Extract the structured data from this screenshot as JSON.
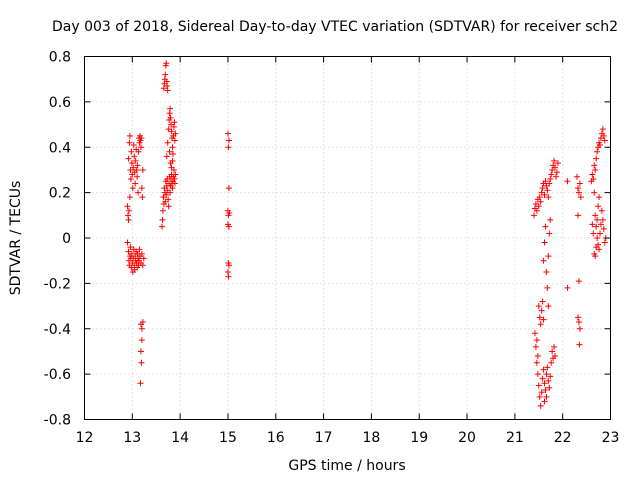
{
  "chart_data": {
    "type": "scatter",
    "title": "Day 003 of 2018, Sidereal Day-to-day VTEC variation (SDTVAR) for receiver sch2",
    "xlabel": "GPS time / hours",
    "ylabel": "SDTVAR / TECUs",
    "xlim": [
      12,
      23
    ],
    "ylim": [
      -0.8,
      0.8
    ],
    "xticks": [
      12,
      13,
      14,
      15,
      16,
      17,
      18,
      19,
      20,
      21,
      22,
      23
    ],
    "yticks": [
      -0.8,
      -0.6,
      -0.4,
      -0.2,
      0,
      0.2,
      0.4,
      0.6,
      0.8
    ],
    "ytick_labels": [
      "-0.8",
      "-0.6",
      "-0.4",
      "-0.2",
      "0",
      "0.2",
      "0.4",
      "0.6",
      "0.8"
    ],
    "grid": true,
    "marker": "plus",
    "color": "#ff0000",
    "series": [
      {
        "name": "SDTVAR",
        "points": [
          [
            12.92,
            0.35
          ],
          [
            12.94,
            0.42
          ],
          [
            12.95,
            0.45
          ],
          [
            12.96,
            0.3
          ],
          [
            12.97,
            0.26
          ],
          [
            12.98,
            0.38
          ],
          [
            12.99,
            0.33
          ],
          [
            13.0,
            0.28
          ],
          [
            13.01,
            0.22
          ],
          [
            13.02,
            0.31
          ],
          [
            13.03,
            0.41
          ],
          [
            13.04,
            0.36
          ],
          [
            13.05,
            0.29
          ],
          [
            13.06,
            0.24
          ],
          [
            13.07,
            0.34
          ],
          [
            13.08,
            0.39
          ],
          [
            13.09,
            0.3
          ],
          [
            13.1,
            0.27
          ],
          [
            13.11,
            0.32
          ],
          [
            13.12,
            0.2
          ],
          [
            13.13,
            0.38
          ],
          [
            13.14,
            0.44
          ],
          [
            13.15,
            0.42
          ],
          [
            13.16,
            0.45
          ],
          [
            13.17,
            0.43
          ],
          [
            13.18,
            0.4
          ],
          [
            13.19,
            0.44
          ],
          [
            13.2,
            0.22
          ],
          [
            13.21,
            0.18
          ],
          [
            13.22,
            0.3
          ],
          [
            12.9,
            0.14
          ],
          [
            12.91,
            0.1
          ],
          [
            12.92,
            0.08
          ],
          [
            12.93,
            0.12
          ],
          [
            12.95,
            0.18
          ],
          [
            12.9,
            -0.02
          ],
          [
            12.92,
            -0.06
          ],
          [
            12.93,
            -0.1
          ],
          [
            12.94,
            -0.12
          ],
          [
            12.95,
            -0.08
          ],
          [
            12.96,
            -0.04
          ],
          [
            12.97,
            -0.09
          ],
          [
            12.98,
            -0.13
          ],
          [
            12.99,
            -0.07
          ],
          [
            13.0,
            -0.11
          ],
          [
            13.01,
            -0.15
          ],
          [
            13.02,
            -0.09
          ],
          [
            13.03,
            -0.05
          ],
          [
            13.04,
            -0.12
          ],
          [
            13.05,
            -0.14
          ],
          [
            13.06,
            -0.08
          ],
          [
            13.07,
            -0.1
          ],
          [
            13.08,
            -0.06
          ],
          [
            13.09,
            -0.11
          ],
          [
            13.1,
            -0.13
          ],
          [
            13.11,
            -0.07
          ],
          [
            13.12,
            -0.09
          ],
          [
            13.13,
            -0.12
          ],
          [
            13.14,
            -0.1
          ],
          [
            13.15,
            -0.05
          ],
          [
            13.16,
            -0.08
          ],
          [
            13.18,
            -0.11
          ],
          [
            13.2,
            -0.07
          ],
          [
            13.22,
            -0.12
          ],
          [
            13.24,
            -0.09
          ],
          [
            13.18,
            -0.38
          ],
          [
            13.2,
            -0.4
          ],
          [
            13.22,
            -0.37
          ],
          [
            13.2,
            -0.45
          ],
          [
            13.18,
            -0.5
          ],
          [
            13.19,
            -0.55
          ],
          [
            13.17,
            -0.64
          ],
          [
            13.62,
            0.05
          ],
          [
            13.63,
            0.08
          ],
          [
            13.64,
            0.12
          ],
          [
            13.65,
            0.18
          ],
          [
            13.66,
            0.15
          ],
          [
            13.67,
            0.22
          ],
          [
            13.68,
            0.2
          ],
          [
            13.69,
            0.16
          ],
          [
            13.7,
            0.25
          ],
          [
            13.71,
            0.19
          ],
          [
            13.72,
            0.23
          ],
          [
            13.73,
            0.26
          ],
          [
            13.74,
            0.21
          ],
          [
            13.75,
            0.17
          ],
          [
            13.76,
            0.14
          ],
          [
            13.77,
            0.24
          ],
          [
            13.78,
            0.27
          ],
          [
            13.79,
            0.2
          ],
          [
            13.8,
            0.23
          ],
          [
            13.81,
            0.26
          ],
          [
            13.82,
            0.28
          ],
          [
            13.83,
            0.24
          ],
          [
            13.84,
            0.22
          ],
          [
            13.85,
            0.25
          ],
          [
            13.86,
            0.27
          ],
          [
            13.87,
            0.3
          ],
          [
            13.88,
            0.26
          ],
          [
            13.89,
            0.24
          ],
          [
            13.9,
            0.28
          ],
          [
            13.66,
            0.66
          ],
          [
            13.67,
            0.68
          ],
          [
            13.68,
            0.7
          ],
          [
            13.69,
            0.72
          ],
          [
            13.7,
            0.76
          ],
          [
            13.71,
            0.77
          ],
          [
            13.72,
            0.69
          ],
          [
            13.73,
            0.67
          ],
          [
            13.74,
            0.65
          ],
          [
            13.72,
            0.36
          ],
          [
            13.74,
            0.42
          ],
          [
            13.76,
            0.48
          ],
          [
            13.77,
            0.52
          ],
          [
            13.78,
            0.55
          ],
          [
            13.79,
            0.57
          ],
          [
            13.8,
            0.53
          ],
          [
            13.81,
            0.5
          ],
          [
            13.82,
            0.47
          ],
          [
            13.83,
            0.44
          ],
          [
            13.84,
            0.4
          ],
          [
            13.85,
            0.37
          ],
          [
            13.86,
            0.45
          ],
          [
            13.87,
            0.49
          ],
          [
            13.88,
            0.51
          ],
          [
            13.89,
            0.43
          ],
          [
            13.9,
            0.46
          ],
          [
            13.78,
            0.38
          ],
          [
            13.8,
            0.33
          ],
          [
            13.82,
            0.31
          ],
          [
            13.84,
            0.34
          ],
          [
            15.0,
            0.46
          ],
          [
            15.02,
            0.43
          ],
          [
            15.01,
            0.4
          ],
          [
            15.02,
            0.22
          ],
          [
            15.0,
            0.12
          ],
          [
            15.01,
            0.1
          ],
          [
            15.03,
            0.11
          ],
          [
            15.02,
            0.05
          ],
          [
            15.0,
            0.06
          ],
          [
            15.01,
            -0.11
          ],
          [
            15.02,
            -0.12
          ],
          [
            15.0,
            -0.15
          ],
          [
            15.01,
            -0.17
          ],
          [
            21.4,
            0.1
          ],
          [
            21.42,
            0.13
          ],
          [
            21.44,
            0.15
          ],
          [
            21.46,
            0.12
          ],
          [
            21.48,
            0.17
          ],
          [
            21.5,
            0.14
          ],
          [
            21.52,
            0.18
          ],
          [
            21.54,
            0.16
          ],
          [
            21.56,
            0.2
          ],
          [
            21.58,
            0.22
          ],
          [
            21.6,
            0.24
          ],
          [
            21.62,
            0.19
          ],
          [
            21.64,
            0.25
          ],
          [
            21.66,
            0.23
          ],
          [
            21.68,
            0.21
          ],
          [
            21.7,
            0.18
          ],
          [
            21.72,
            0.24
          ],
          [
            21.74,
            0.26
          ],
          [
            21.76,
            0.28
          ],
          [
            21.78,
            0.3
          ],
          [
            21.8,
            0.32
          ],
          [
            21.82,
            0.34
          ],
          [
            21.84,
            0.31
          ],
          [
            21.86,
            0.27
          ],
          [
            21.88,
            0.29
          ],
          [
            21.9,
            0.33
          ],
          [
            21.42,
            -0.42
          ],
          [
            21.44,
            -0.48
          ],
          [
            21.46,
            -0.55
          ],
          [
            21.48,
            -0.6
          ],
          [
            21.5,
            -0.65
          ],
          [
            21.52,
            -0.7
          ],
          [
            21.54,
            -0.74
          ],
          [
            21.56,
            -0.68
          ],
          [
            21.58,
            -0.62
          ],
          [
            21.6,
            -0.58
          ],
          [
            21.62,
            -0.64
          ],
          [
            21.64,
            -0.67
          ],
          [
            21.66,
            -0.6
          ],
          [
            21.68,
            -0.57
          ],
          [
            21.7,
            -0.63
          ],
          [
            21.72,
            -0.66
          ],
          [
            21.74,
            -0.61
          ],
          [
            21.76,
            -0.55
          ],
          [
            21.78,
            -0.5
          ],
          [
            21.8,
            -0.53
          ],
          [
            21.82,
            -0.48
          ],
          [
            21.84,
            -0.52
          ],
          [
            21.5,
            -0.3
          ],
          [
            21.52,
            -0.35
          ],
          [
            21.54,
            -0.38
          ],
          [
            21.56,
            -0.32
          ],
          [
            21.58,
            -0.28
          ],
          [
            21.6,
            -0.36
          ],
          [
            21.46,
            -0.45
          ],
          [
            21.48,
            -0.52
          ],
          [
            21.62,
            -0.72
          ],
          [
            21.66,
            -0.7
          ],
          [
            21.6,
            -0.1
          ],
          [
            21.62,
            -0.02
          ],
          [
            21.64,
            0.05
          ],
          [
            21.66,
            -0.15
          ],
          [
            21.68,
            -0.22
          ],
          [
            21.7,
            -0.08
          ],
          [
            21.72,
            0.02
          ],
          [
            21.74,
            0.08
          ],
          [
            21.7,
            -0.3
          ],
          [
            22.1,
            0.25
          ],
          [
            22.1,
            -0.22
          ],
          [
            22.3,
            0.27
          ],
          [
            22.32,
            0.22
          ],
          [
            22.34,
            0.2
          ],
          [
            22.36,
            0.24
          ],
          [
            22.38,
            0.18
          ],
          [
            22.32,
            0.1
          ],
          [
            22.34,
            -0.19
          ],
          [
            22.32,
            -0.35
          ],
          [
            22.34,
            -0.37
          ],
          [
            22.36,
            -0.4
          ],
          [
            22.35,
            -0.47
          ],
          [
            22.6,
            0.25
          ],
          [
            22.62,
            0.28
          ],
          [
            22.64,
            0.26
          ],
          [
            22.66,
            0.2
          ],
          [
            22.68,
            0.1
          ],
          [
            22.7,
            0.05
          ],
          [
            22.72,
            0.0
          ],
          [
            22.74,
            -0.03
          ],
          [
            22.76,
            -0.05
          ],
          [
            22.78,
            0.02
          ],
          [
            22.8,
            0.06
          ],
          [
            22.82,
            0.12
          ],
          [
            22.84,
            0.08
          ],
          [
            22.86,
            0.04
          ],
          [
            22.88,
            -0.02
          ],
          [
            22.9,
            0.0
          ],
          [
            22.62,
            0.06
          ],
          [
            22.64,
            0.02
          ],
          [
            22.66,
            -0.07
          ],
          [
            22.68,
            -0.08
          ],
          [
            22.7,
            -0.04
          ],
          [
            22.72,
            0.08
          ],
          [
            22.74,
            0.14
          ],
          [
            22.76,
            0.18
          ],
          [
            22.7,
            0.35
          ],
          [
            22.72,
            0.38
          ],
          [
            22.74,
            0.4
          ],
          [
            22.76,
            0.42
          ],
          [
            22.78,
            0.41
          ],
          [
            22.8,
            0.44
          ],
          [
            22.82,
            0.46
          ],
          [
            22.84,
            0.48
          ],
          [
            22.86,
            0.45
          ],
          [
            22.88,
            0.43
          ],
          [
            22.68,
            0.3
          ],
          [
            22.66,
            0.32
          ]
        ]
      }
    ]
  }
}
